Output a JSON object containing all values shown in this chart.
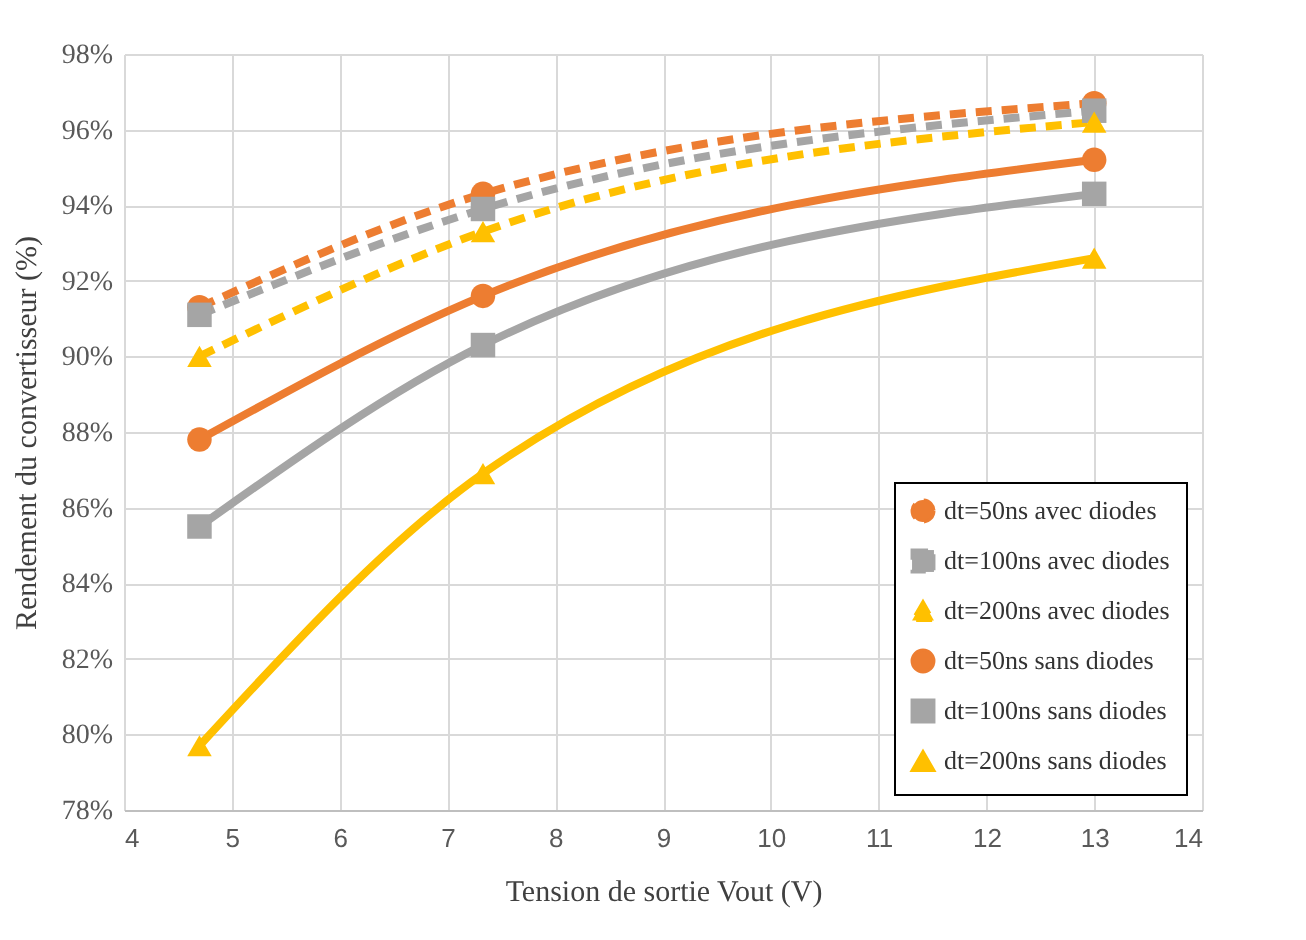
{
  "chart_data": {
    "type": "line",
    "xlabel": "Tension de sortie Vout (V)",
    "ylabel": "Rendement du convertisseur (%)",
    "x": [
      4.7,
      7.33,
      13
    ],
    "series": [
      {
        "name": "dt=50ns avec diodes",
        "color": "#ed7d31",
        "values": [
          91.3,
          94.3,
          96.7
        ],
        "marker": "circle",
        "line_style": "dashed"
      },
      {
        "name": "dt=100ns avec diodes",
        "color": "#a5a5a5",
        "values": [
          91.1,
          93.9,
          96.5
        ],
        "marker": "square",
        "line_style": "dashed"
      },
      {
        "name": "dt=200ns avec diodes",
        "color": "#ffc000",
        "values": [
          90.0,
          93.3,
          96.2
        ],
        "marker": "triangle",
        "line_style": "dashed"
      },
      {
        "name": "dt=50ns sans diodes",
        "color": "#ed7d31",
        "values": [
          87.8,
          91.6,
          95.2
        ],
        "marker": "circle",
        "line_style": "solid"
      },
      {
        "name": "dt=100ns sans diodes",
        "color": "#a5a5a5",
        "values": [
          85.5,
          90.3,
          94.3
        ],
        "marker": "square",
        "line_style": "solid"
      },
      {
        "name": "dt=200ns sans diodes",
        "color": "#ffc000",
        "values": [
          79.7,
          86.9,
          92.6
        ],
        "marker": "triangle",
        "line_style": "solid"
      }
    ],
    "xlim": [
      4,
      14
    ],
    "xticks": [
      4,
      5,
      6,
      7,
      8,
      9,
      10,
      11,
      12,
      13,
      14
    ],
    "ylim": [
      78,
      98
    ],
    "yticks": [
      {
        "value": 78,
        "label": "78%"
      },
      {
        "value": 80,
        "label": "80%"
      },
      {
        "value": 82,
        "label": "82%"
      },
      {
        "value": 84,
        "label": "84%"
      },
      {
        "value": 86,
        "label": "86%"
      },
      {
        "value": 88,
        "label": "88%"
      },
      {
        "value": 90,
        "label": "90%"
      },
      {
        "value": 92,
        "label": "92%"
      },
      {
        "value": 94,
        "label": "94%"
      },
      {
        "value": 96,
        "label": "96%"
      },
      {
        "value": 98,
        "label": "98%"
      }
    ],
    "grid": true,
    "legend": "bottom right"
  }
}
